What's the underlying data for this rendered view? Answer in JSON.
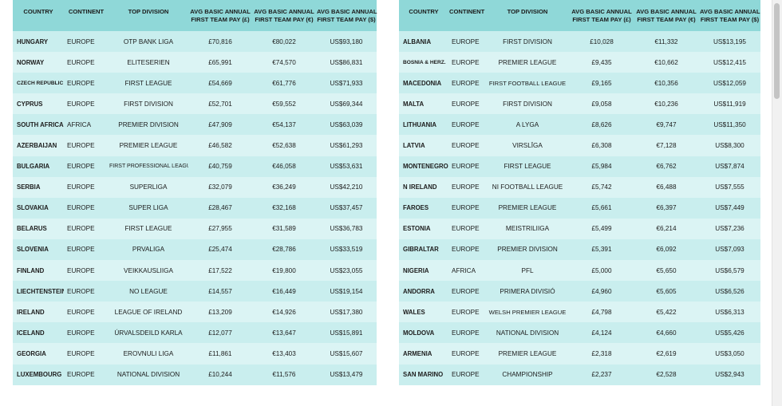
{
  "headers": {
    "country": "COUNTRY",
    "continent": "CONTINENT",
    "division": "TOP DIVISION",
    "gbp_line1": "AVG BASIC ANNUAL",
    "gbp_line2": "FIRST TEAM PAY (£)",
    "eur_line1": "AVG BASIC ANNUAL",
    "eur_line2": "FIRST TEAM PAY (€)",
    "usd_line1": "AVG BASIC ANNUAL",
    "usd_line2": "FIRST TEAM PAY ($)"
  },
  "left_rows": [
    {
      "country": "HUNGARY",
      "continent": "EUROPE",
      "division": "OTP BANK LIGA",
      "gbp": "£70,816",
      "eur": "€80,022",
      "usd": "US$93,180"
    },
    {
      "country": "NORWAY",
      "continent": "EUROPE",
      "division": "ELITESERIEN",
      "gbp": "£65,991",
      "eur": "€74,570",
      "usd": "US$86,831"
    },
    {
      "country": "CZECH REPUBLIC",
      "continent": "EUROPE",
      "division": "FIRST LEAGUE",
      "gbp": "£54,669",
      "eur": "€61,776",
      "usd": "US$71,933"
    },
    {
      "country": "CYPRUS",
      "continent": "EUROPE",
      "division": "FIRST DIVISION",
      "gbp": "£52,701",
      "eur": "€59,552",
      "usd": "US$69,344"
    },
    {
      "country": "SOUTH AFRICA",
      "continent": "AFRICA",
      "division": "PREMIER DIVISION",
      "gbp": "£47,909",
      "eur": "€54,137",
      "usd": "US$63,039"
    },
    {
      "country": "AZERBAIJAN",
      "continent": "EUROPE",
      "division": "PREMIER LEAGUE",
      "gbp": "£46,582",
      "eur": "€52,638",
      "usd": "US$61,293"
    },
    {
      "country": "BULGARIA",
      "continent": "EUROPE",
      "division": "FIRST PROFESSIONAL LEAGUE",
      "gbp": "£40,759",
      "eur": "€46,058",
      "usd": "US$53,631"
    },
    {
      "country": "SERBIA",
      "continent": "EUROPE",
      "division": "SUPERLIGA",
      "gbp": "£32,079",
      "eur": "€36,249",
      "usd": "US$42,210"
    },
    {
      "country": "SLOVAKIA",
      "continent": "EUROPE",
      "division": "SUPER LIGA",
      "gbp": "£28,467",
      "eur": "€32,168",
      "usd": "US$37,457"
    },
    {
      "country": "BELARUS",
      "continent": "EUROPE",
      "division": "FIRST LEAGUE",
      "gbp": "£27,955",
      "eur": "€31,589",
      "usd": "US$36,783"
    },
    {
      "country": "SLOVENIA",
      "continent": "EUROPE",
      "division": "PRVALIGA",
      "gbp": "£25,474",
      "eur": "€28,786",
      "usd": "US$33,519"
    },
    {
      "country": "FINLAND",
      "continent": "EUROPE",
      "division": "VEIKKAUSLIIGA",
      "gbp": "£17,522",
      "eur": "€19,800",
      "usd": "US$23,055"
    },
    {
      "country": "LIECHTENSTEIN",
      "continent": "EUROPE",
      "division": "NO LEAGUE",
      "gbp": "£14,557",
      "eur": "€16,449",
      "usd": "US$19,154"
    },
    {
      "country": "IRELAND",
      "continent": "EUROPE",
      "division": "LEAGUE OF IRELAND",
      "gbp": "£13,209",
      "eur": "€14,926",
      "usd": "US$17,380"
    },
    {
      "country": "ICELAND",
      "continent": "EUROPE",
      "division": "ÚRVALSDEILD KARLA",
      "gbp": "£12,077",
      "eur": "€13,647",
      "usd": "US$15,891"
    },
    {
      "country": "GEORGIA",
      "continent": "EUROPE",
      "division": "EROVNULI LIGA",
      "gbp": "£11,861",
      "eur": "€13,403",
      "usd": "US$15,607"
    },
    {
      "country": "LUXEMBOURG",
      "continent": "EUROPE",
      "division": "NATIONAL DIVISION",
      "gbp": "£10,244",
      "eur": "€11,576",
      "usd": "US$13,479"
    }
  ],
  "right_rows": [
    {
      "country": "ALBANIA",
      "continent": "EUROPE",
      "division": "FIRST DIVISION",
      "gbp": "£10,028",
      "eur": "€11,332",
      "usd": "US$13,195"
    },
    {
      "country": "BOSNIA & HERZ.",
      "continent": "EUROPE",
      "division": "PREMIER LEAGUE",
      "gbp": "£9,435",
      "eur": "€10,662",
      "usd": "US$12,415"
    },
    {
      "country": "MACEDONIA",
      "continent": "EUROPE",
      "division": "FIRST FOOTBALL LEAGUE",
      "gbp": "£9,165",
      "eur": "€10,356",
      "usd": "US$12,059"
    },
    {
      "country": "MALTA",
      "continent": "EUROPE",
      "division": "FIRST DIVISION",
      "gbp": "£9,058",
      "eur": "€10,236",
      "usd": "US$11,919"
    },
    {
      "country": "LITHUANIA",
      "continent": "EUROPE",
      "division": "A LYGA",
      "gbp": "£8,626",
      "eur": "€9,747",
      "usd": "US$11,350"
    },
    {
      "country": "LATVIA",
      "continent": "EUROPE",
      "division": "VIRSLĪGA",
      "gbp": "£6,308",
      "eur": "€7,128",
      "usd": "US$8,300"
    },
    {
      "country": "MONTENEGRO",
      "continent": "EUROPE",
      "division": "FIRST LEAGUE",
      "gbp": "£5,984",
      "eur": "€6,762",
      "usd": "US$7,874"
    },
    {
      "country": "N IRELAND",
      "continent": "EUROPE",
      "division": "NI FOOTBALL LEAGUE",
      "gbp": "£5,742",
      "eur": "€6,488",
      "usd": "US$7,555"
    },
    {
      "country": "FAROES",
      "continent": "EUROPE",
      "division": "PREMIER LEAGUE",
      "gbp": "£5,661",
      "eur": "€6,397",
      "usd": "US$7,449"
    },
    {
      "country": "ESTONIA",
      "continent": "EUROPE",
      "division": "MEISTRILIIGA",
      "gbp": "£5,499",
      "eur": "€6,214",
      "usd": "US$7,236"
    },
    {
      "country": "GIBRALTAR",
      "continent": "EUROPE",
      "division": "PREMIER DIVISION",
      "gbp": "£5,391",
      "eur": "€6,092",
      "usd": "US$7,093"
    },
    {
      "country": "NIGERIA",
      "continent": "AFRICA",
      "division": "PFL",
      "gbp": "£5,000",
      "eur": "€5,650",
      "usd": "US$6,579"
    },
    {
      "country": "ANDORRA",
      "continent": "EUROPE",
      "division": "PRIMERA DIVISIÓ",
      "gbp": "£4,960",
      "eur": "€5,605",
      "usd": "US$6,526"
    },
    {
      "country": "WALES",
      "continent": "EUROPE",
      "division": "WELSH PREMIER LEAGUE",
      "gbp": "£4,798",
      "eur": "€5,422",
      "usd": "US$6,313"
    },
    {
      "country": "MOLDOVA",
      "continent": "EUROPE",
      "division": "NATIONAL DIVISION",
      "gbp": "£4,124",
      "eur": "€4,660",
      "usd": "US$5,426"
    },
    {
      "country": "ARMENIA",
      "continent": "EUROPE",
      "division": "PREMIER LEAGUE",
      "gbp": "£2,318",
      "eur": "€2,619",
      "usd": "US$3,050"
    },
    {
      "country": "SAN MARINO",
      "continent": "EUROPE",
      "division": "CHAMPIONSHIP",
      "gbp": "£2,237",
      "eur": "€2,528",
      "usd": "US$2,943"
    }
  ]
}
